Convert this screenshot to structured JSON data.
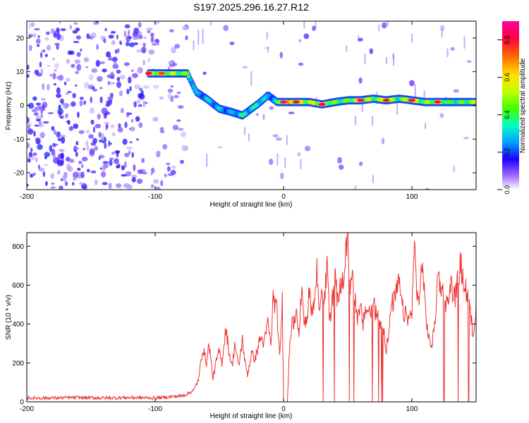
{
  "title": "S197.2025.296.16.27.R12",
  "chart_data": [
    {
      "type": "heatmap",
      "title": "S197.2025.296.16.27.R12",
      "xlabel": "Height of straight line (km)",
      "ylabel": "Frequency (Hz)",
      "xlim": [
        -200,
        150
      ],
      "ylim": [
        -25,
        25
      ],
      "x_ticks": [
        -200,
        -100,
        0,
        100
      ],
      "y_ticks": [
        -20,
        -10,
        0,
        10,
        20
      ],
      "colorbar": {
        "label": "Normalized spectral amplitude",
        "range": [
          0.0,
          0.9
        ],
        "ticks": [
          0.0,
          0.2,
          0.4,
          0.6,
          0.8
        ]
      },
      "ridge": {
        "description": "dominant frequency ridge vs height",
        "x": [
          -105,
          -95,
          -85,
          -75,
          -68,
          -60,
          -50,
          -40,
          -32,
          -25,
          -18,
          -12,
          -5,
          0,
          10,
          20,
          30,
          40,
          50,
          60,
          70,
          80,
          90,
          100,
          110,
          120,
          130,
          140,
          150
        ],
        "freq": [
          9.5,
          9.5,
          9.5,
          9.5,
          4,
          2,
          -1,
          -2,
          -3,
          -1,
          1,
          3,
          1,
          1,
          1,
          1,
          0.3,
          1,
          1.5,
          1.5,
          2,
          1.5,
          2,
          1.5,
          1,
          1,
          1,
          1,
          1
        ],
        "amplitude": [
          0.8,
          0.75,
          0.7,
          0.6,
          0.35,
          0.4,
          0.4,
          0.35,
          0.5,
          0.45,
          0.5,
          0.35,
          0.45,
          0.9,
          0.8,
          0.7,
          0.85,
          0.6,
          0.6,
          0.85,
          0.6,
          0.8,
          0.55,
          0.85,
          0.6,
          0.8,
          0.55,
          0.6,
          0.7
        ]
      }
    },
    {
      "type": "line",
      "xlabel": "Height of straight line (km)",
      "ylabel": "SNR (10 * v/v)",
      "xlim": [
        -200,
        150
      ],
      "ylim": [
        0,
        870
      ],
      "x_ticks": [
        -200,
        -100,
        0,
        100
      ],
      "y_ticks": [
        0,
        200,
        400,
        600,
        800
      ],
      "series": [
        {
          "name": "SNR",
          "color": "#ee3333",
          "x": [
            -200,
            -180,
            -160,
            -140,
            -120,
            -100,
            -90,
            -80,
            -75,
            -70,
            -66,
            -63,
            -60,
            -58,
            -55,
            -52,
            -50,
            -48,
            -45,
            -42,
            -40,
            -38,
            -35,
            -32,
            -30,
            -28,
            -25,
            -22,
            -20,
            -18,
            -15,
            -12,
            -10,
            -8,
            -5,
            -3,
            -1,
            0,
            1,
            3,
            5,
            7,
            8,
            10,
            12,
            14,
            16,
            18,
            20,
            22,
            24,
            26,
            28,
            30,
            32,
            34,
            36,
            38,
            40,
            42,
            44,
            46,
            48,
            50,
            52,
            54,
            56,
            58,
            60,
            62,
            64,
            66,
            68,
            70,
            72,
            74,
            76,
            78,
            80,
            82,
            84,
            86,
            88,
            90,
            92,
            94,
            96,
            98,
            100,
            102,
            104,
            106,
            108,
            110,
            112,
            114,
            116,
            118,
            120,
            122,
            124,
            126,
            128,
            130,
            132,
            134,
            136,
            138,
            140,
            142,
            144,
            146,
            148,
            150
          ],
          "y": [
            20,
            20,
            22,
            20,
            22,
            20,
            25,
            30,
            40,
            60,
            120,
            280,
            200,
            300,
            120,
            220,
            260,
            200,
            380,
            240,
            180,
            300,
            180,
            320,
            200,
            140,
            250,
            220,
            280,
            330,
            300,
            420,
            280,
            540,
            460,
            220,
            520,
            0,
            0,
            0,
            330,
            420,
            380,
            520,
            300,
            600,
            430,
            420,
            560,
            480,
            500,
            680,
            450,
            620,
            520,
            720,
            400,
            530,
            640,
            520,
            580,
            620,
            700,
            870,
            600,
            650,
            520,
            420,
            480,
            400,
            480,
            470,
            460,
            500,
            460,
            430,
            400,
            380,
            270,
            350,
            500,
            520,
            560,
            620,
            500,
            450,
            440,
            420,
            480,
            800,
            560,
            520,
            740,
            510,
            380,
            300,
            300,
            420,
            640,
            620,
            560,
            520,
            500,
            610,
            560,
            540,
            630,
            720,
            600,
            590,
            520,
            420,
            350,
            500
          ]
        }
      ]
    }
  ]
}
